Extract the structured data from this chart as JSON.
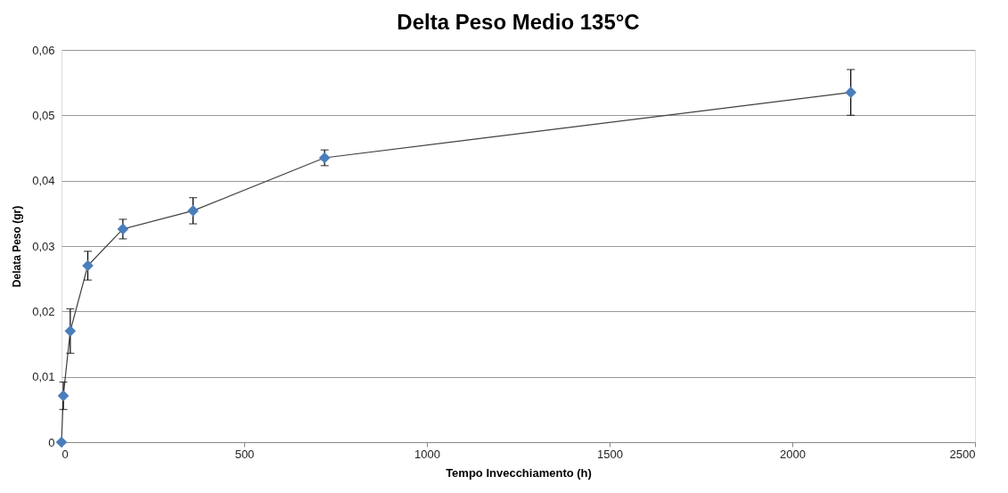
{
  "chart_data": {
    "type": "line",
    "title": "Delta Peso Medio 135°C",
    "xlabel": "Tempo Invecchiamento (h)",
    "ylabel": "Delata Peso (gr)",
    "x": [
      0,
      5,
      24,
      72,
      168,
      360,
      720,
      2160
    ],
    "series": [
      {
        "color": "#4a7ebb",
        "values": [
          0,
          0.0071,
          0.017,
          0.027,
          0.0326,
          0.0354,
          0.0435,
          0.0535
        ],
        "errors": [
          null,
          0.0021,
          0.0034,
          0.0022,
          0.0015,
          0.002,
          0.0012,
          0.0035
        ]
      }
    ],
    "xlim": [
      0,
      2500
    ],
    "xticks": [
      0,
      500,
      1000,
      1500,
      2000,
      2500
    ],
    "ylim": [
      0,
      0.06
    ],
    "yticks": [
      0,
      {
        "value": 0.01,
        "label": "0,01"
      },
      {
        "value": 0.02,
        "label": "0,02"
      },
      {
        "value": 0.03,
        "label": "0,03"
      },
      {
        "value": 0.04,
        "label": "0,04"
      },
      {
        "value": 0.05,
        "label": "0,05"
      },
      {
        "value": 0.06,
        "label": "0,06"
      }
    ],
    "grid": "y",
    "marker": "diamond",
    "line_style": "solid"
  }
}
